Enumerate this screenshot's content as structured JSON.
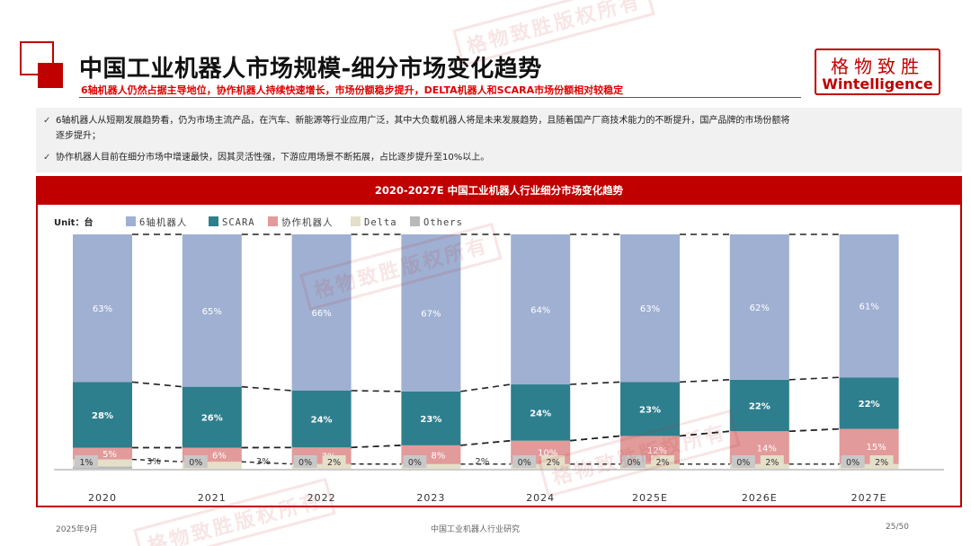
{
  "header": {
    "title": "中国工业机器人市场规模-细分市场变化趋势",
    "subtitle": "6轴机器人仍然占据主导地位，协作机器人持续快速增长，市场份额稳步提升，DELTA机器人和SCARA市场份额相对较稳定"
  },
  "logo": {
    "cn": "格物致胜",
    "en": "Wintelligence"
  },
  "watermark": "格物致胜版权所有",
  "bullets": {
    "check": "✓",
    "b1_line1": "6轴机器人从短期发展趋势看，仍为市场主流产品，在汽车、新能源等行业应用广泛，其中大负载机器人将是未来发展趋势，且随着国产厂商技术能力的不断提升，国产品牌的市场份额将",
    "b1_line2": "逐步提升；",
    "b2": "协作机器人目前在细分市场中增速最快，因其灵活性强，下游应用场景不断拓展，占比逐步提升至10%以上。"
  },
  "chart_data": {
    "type": "bar",
    "stacked": true,
    "percent": true,
    "title": "2020-2027E 中国工业机器人行业细分市场变化趋势",
    "unit": "Unit：台",
    "categories": [
      "2020",
      "2021",
      "2022",
      "2023",
      "2024",
      "2025E",
      "2026E",
      "2027E"
    ],
    "series": [
      {
        "name": "Others",
        "color": "#b9b9b9",
        "values": [
          1,
          0,
          0,
          0,
          0,
          0,
          0,
          0
        ],
        "labels": [
          "1%",
          "0%",
          "0%",
          "0%",
          "0%",
          "0%",
          "0%",
          "0%"
        ]
      },
      {
        "name": "Delta",
        "color": "#e4dfc8",
        "values": [
          3,
          3,
          2,
          2,
          2,
          2,
          2,
          2
        ],
        "labels": [
          "3%",
          "3%",
          "2%",
          "2%",
          "2%",
          "2%",
          "2%",
          "2%"
        ]
      },
      {
        "name": "协作机器人",
        "color": "#e29a9a",
        "values": [
          5,
          6,
          7,
          8,
          10,
          12,
          14,
          15
        ],
        "labels": [
          "5%",
          "6%",
          "7%",
          "8%",
          "10%",
          "12%",
          "14%",
          "15%"
        ]
      },
      {
        "name": "SCARA",
        "color": "#2e7f8e",
        "values": [
          28,
          26,
          24,
          23,
          24,
          23,
          22,
          22
        ],
        "labels": [
          "28%",
          "26%",
          "24%",
          "23%",
          "24%",
          "23%",
          "22%",
          "22%"
        ]
      },
      {
        "name": "6轴机器人",
        "color": "#9fb0d2",
        "values": [
          63,
          65,
          66,
          67,
          64,
          63,
          62,
          61
        ],
        "labels": [
          "63%",
          "65%",
          "66%",
          "67%",
          "64%",
          "63%",
          "62%",
          "61%"
        ]
      }
    ],
    "legend_order": [
      "6轴机器人",
      "SCARA",
      "协作机器人",
      "Delta",
      "Others"
    ],
    "legend": "top-left",
    "ylim": [
      0,
      100
    ],
    "grid": false
  },
  "footer": {
    "date": "2025年9月",
    "center": "中国工业机器人行业研究",
    "page": "25/50"
  }
}
